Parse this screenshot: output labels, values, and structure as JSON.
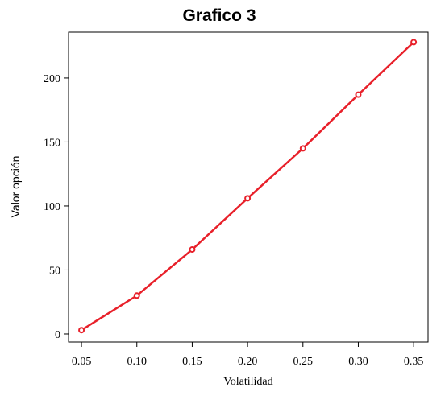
{
  "chart_data": {
    "type": "line",
    "title": "Grafico 3",
    "x_label": "Volatilidad",
    "y_label": "Valor opción",
    "x": [
      0.05,
      0.1,
      0.15,
      0.2,
      0.25,
      0.3,
      0.35
    ],
    "series": [
      {
        "name": "Valor opción",
        "color": "#e8202a",
        "values": [
          3,
          30,
          66,
          106,
          145,
          187,
          228
        ]
      }
    ],
    "xlim": [
      0.0383,
      0.363
    ],
    "ylim": [
      -6.3,
      235.8
    ],
    "xticks": [
      {
        "value": 0.05,
        "label": "0.05"
      },
      {
        "value": 0.1,
        "label": "0.10"
      },
      {
        "value": 0.15,
        "label": "0.15"
      },
      {
        "value": 0.2,
        "label": "0.20"
      },
      {
        "value": 0.25,
        "label": "0.25"
      },
      {
        "value": 0.3,
        "label": "0.30"
      },
      {
        "value": 0.35,
        "label": "0.35"
      }
    ],
    "yticks": [
      0,
      50,
      100,
      150,
      200
    ],
    "grid": false
  }
}
